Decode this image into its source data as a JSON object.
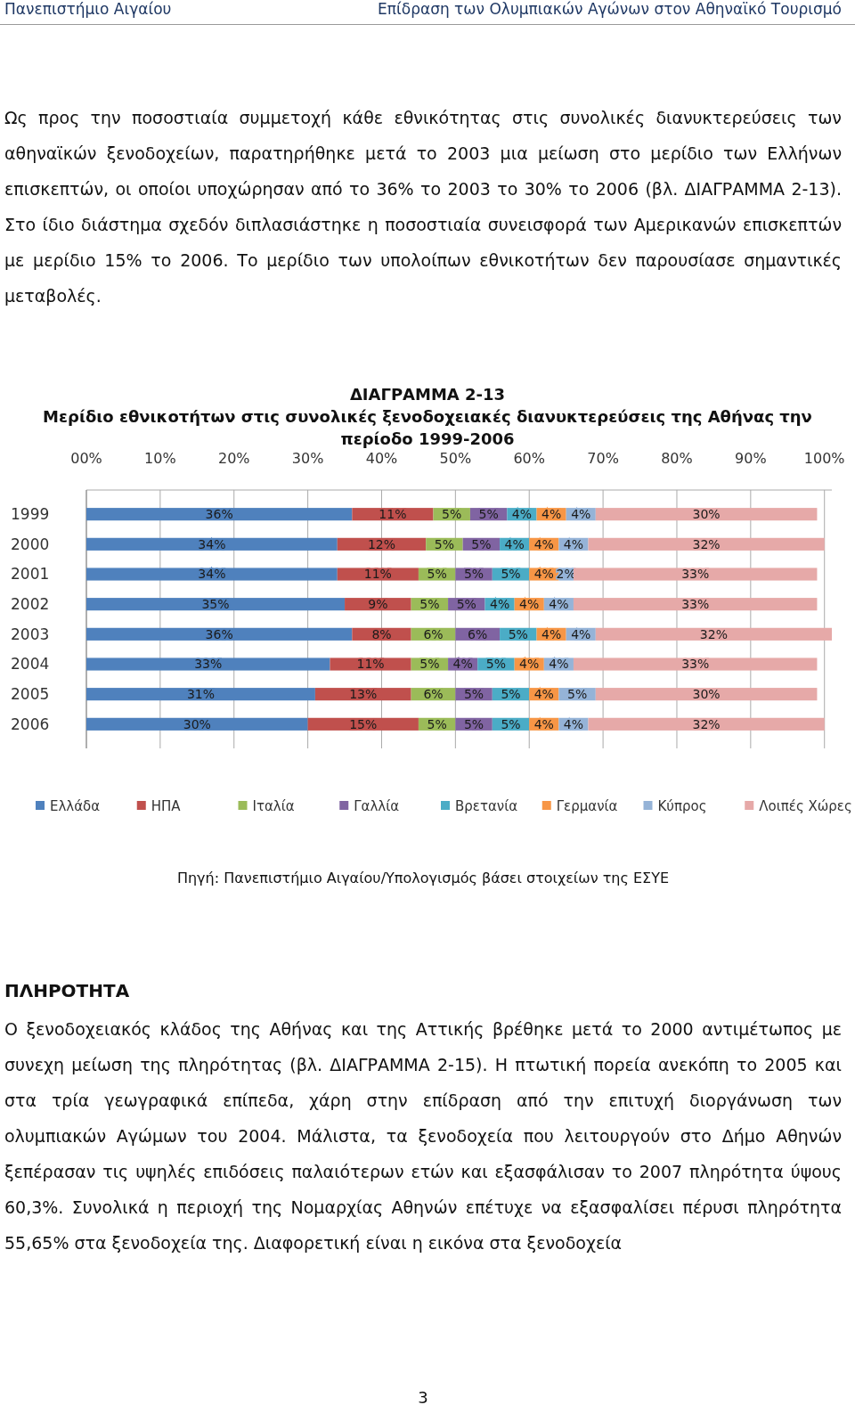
{
  "chart_data": {
    "type": "bar",
    "orientation": "horizontal",
    "stacked": true,
    "title": "ΔΙΑΓΡΑΜΜΑ 2-13",
    "subtitle": "Μερίδιο εθνικοτήτων στις συνολικές ξενοδοχειακές διανυκτερεύσεις της Αθήνας την περίοδο 1999-2006",
    "categories": [
      "1999",
      "2000",
      "2001",
      "2002",
      "2003",
      "2004",
      "2005",
      "2006"
    ],
    "xlim": [
      0,
      101
    ],
    "xticks": [
      {
        "value": 0,
        "label": "00%"
      },
      {
        "value": 10,
        "label": "10%"
      },
      {
        "value": 20,
        "label": "20%"
      },
      {
        "value": 30,
        "label": "30%"
      },
      {
        "value": 40,
        "label": "40%"
      },
      {
        "value": 50,
        "label": "50%"
      },
      {
        "value": 60,
        "label": "60%"
      },
      {
        "value": 70,
        "label": "70%"
      },
      {
        "value": 80,
        "label": "80%"
      },
      {
        "value": 90,
        "label": "90%"
      },
      {
        "value": 100,
        "label": "100%"
      }
    ],
    "grid": "x",
    "legend": "bottom",
    "series": [
      {
        "name": "Ελλάδα",
        "color": "#4f81bd",
        "values": [
          36,
          34,
          34,
          35,
          36,
          33,
          31,
          30
        ],
        "value_labels": [
          "36%",
          "34%",
          "34%",
          "35%",
          "36%",
          "33%",
          "31%",
          "30%"
        ]
      },
      {
        "name": "ΗΠΑ",
        "color": "#c0504d",
        "values": [
          11,
          12,
          11,
          9,
          8,
          11,
          13,
          15
        ],
        "value_labels": [
          "11%",
          "12%",
          "11%",
          "9%",
          "8%",
          "11%",
          "13%",
          "15%"
        ]
      },
      {
        "name": "Ιταλία",
        "color": "#9bbb59",
        "values": [
          5,
          5,
          5,
          5,
          6,
          5,
          6,
          5
        ],
        "value_labels": [
          "5%",
          "5%",
          "5%",
          "5%",
          "6%",
          "5%",
          "6%",
          "5%"
        ]
      },
      {
        "name": "Γαλλία",
        "color": "#8064a2",
        "values": [
          5,
          5,
          5,
          5,
          6,
          4,
          5,
          5
        ],
        "value_labels": [
          "5%",
          "5%",
          "5%",
          "5%",
          "6%",
          "4%",
          "5%",
          "5%"
        ]
      },
      {
        "name": "Βρετανία",
        "color": "#4bacc6",
        "values": [
          4,
          4,
          5,
          4,
          5,
          5,
          5,
          5
        ],
        "value_labels": [
          "4%",
          "4%",
          "5%",
          "4%",
          "5%",
          "5%",
          "5%",
          "5%"
        ]
      },
      {
        "name": "Γερμανία",
        "color": "#f79646",
        "values": [
          4,
          4,
          4,
          4,
          4,
          4,
          4,
          4
        ],
        "value_labels": [
          "4%",
          "4%",
          "4%",
          "4%",
          "4%",
          "4%",
          "4%",
          "4%"
        ]
      },
      {
        "name": "Κύπρος",
        "color": "#95b3d7",
        "values": [
          4,
          4,
          2,
          4,
          4,
          4,
          5,
          4
        ],
        "value_labels": [
          "4%",
          "4%",
          "2%",
          "4%",
          "4%",
          "4%",
          "5%",
          "4%"
        ]
      },
      {
        "name": "Λοιπές Χώρες",
        "color": "#e6a9a8",
        "values": [
          30,
          32,
          33,
          33,
          32,
          33,
          30,
          32
        ],
        "value_labels": [
          "30%",
          "32%",
          "33%",
          "33%",
          "32%",
          "33%",
          "30%",
          "32%"
        ]
      }
    ],
    "annotations": [
      "Πανεπιστήμιο Αιγαίου",
      "Επίδραση των Ολυμπιακών Αγώνων στον Αθηναϊκό Τουρισμό",
      "Ως προς την ποσοστιαία συμμετοχή κάθε εθνικότητας στις συνολικές διανυκτερεύσεις των αθηναϊκών ξενοδοχείων, παρατηρήθηκε μετά το 2003 μια μείωση στο μερίδιο των Ελλήνων επισκεπτών, οι οποίοι υποχώρησαν από το 36% το 2003 το 30% το 2006 (βλ. ΔΙΑΓΡΑΜΜΑ 2-13). Στο ίδιο διάστημα σχεδόν διπλασιάστηκε η ποσοστιαία συνεισφορά των Αμερικανών επισκεπτών με μερίδιο 15% το 2006. Το μερίδιο των υπολοίπων εθνικοτήτων δεν παρουσίασε σημαντικές μεταβολές.",
      "Πηγή: Πανεπιστήμιο Αιγαίου/Υπολογισμός βάσει στοιχείων της ΕΣΥΕ",
      "ΠΛΗΡΟΤΗΤΑ",
      "Ο ξενοδοχειακός κλάδος της Αθήνας και της Αττικής βρέθηκε μετά το 2000 αντιμέτωπος με συνεχη μείωση της πληρότητας (βλ. ΔΙΑΓΡΑΜΜΑ 2-15). Η πτωτική πορεία ανεκόπη το 2005 και στα τρία γεωγραφικά επίπεδα, χάρη στην επίδραση από την επιτυχή διοργάνωση των ολυμπιακών Αγώμων του 2004. Μάλιστα, τα ξενοδοχεία που λειτουργούν στο Δήμο Αθηνών ξεπέρασαν τις υψηλές επιδόσεις παλαιότερων ετών και εξασφάλισαν το 2007 πληρότητα ύψους 60,3%. Συνολικά η περιοχή της Νομαρχίας Αθηνών επέτυχε να εξασφαλίσει πέρυσι πληρότητα 55,65% στα ξενοδοχεία της. Διαφορετική είναι η εικόνα στα ξενοδοχεία",
      "3"
    ]
  }
}
